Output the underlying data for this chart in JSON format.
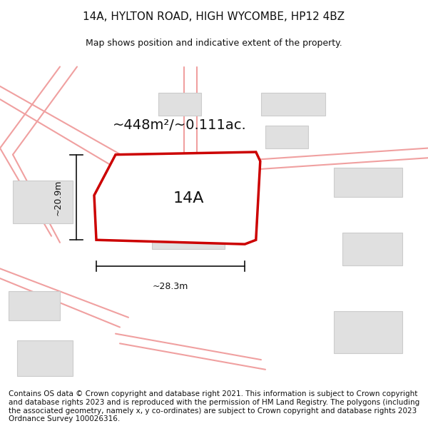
{
  "title": "14A, HYLTON ROAD, HIGH WYCOMBE, HP12 4BZ",
  "subtitle": "Map shows position and indicative extent of the property.",
  "area_label": "~448m²/~0.111ac.",
  "plot_label": "14A",
  "width_label": "~28.3m",
  "height_label": "~20.9m",
  "footer": "Contains OS data © Crown copyright and database right 2021. This information is subject to Crown copyright and database rights 2023 and is reproduced with the permission of HM Land Registry. The polygons (including the associated geometry, namely x, y co-ordinates) are subject to Crown copyright and database rights 2023 Ordnance Survey 100026316.",
  "bg_color": "#ffffff",
  "map_bg": "#f5f5f5",
  "road_color": "#f0a0a0",
  "building_fill": "#e0e0e0",
  "building_edge": "#cccccc",
  "plot_fill": "#ffffff",
  "plot_edge": "#cc0000",
  "plot_lw": 2.5,
  "dim_color": "#111111",
  "text_color": "#111111",
  "title_fontsize": 11,
  "subtitle_fontsize": 9,
  "area_fontsize": 14,
  "label_fontsize": 16,
  "footer_fontsize": 7.5
}
